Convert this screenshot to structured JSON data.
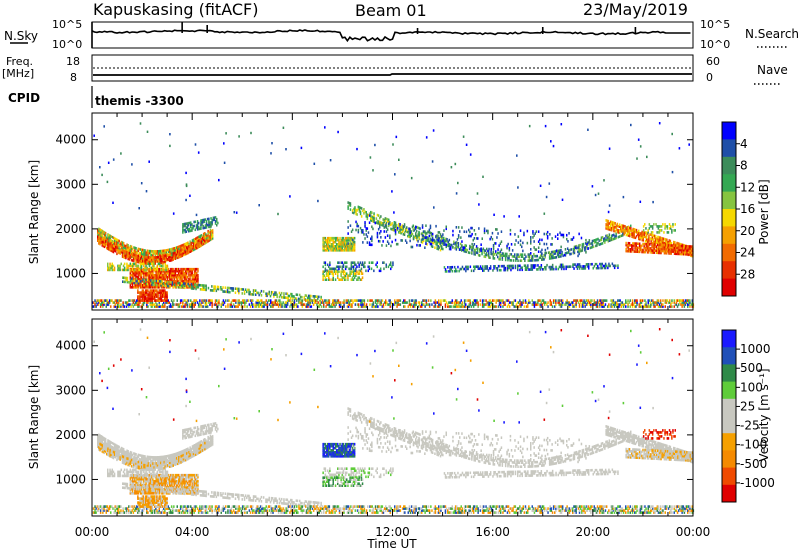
{
  "header": {
    "station": "Kapuskasing (fitACF)",
    "beam": "Beam 01",
    "date": "23/May/2019"
  },
  "control_panels": {
    "nsky": {
      "label": "N.Sky",
      "ticks": [
        "10^5",
        "10^0"
      ]
    },
    "nsearch": {
      "label": "N.Search",
      "ticks": [
        "10^5",
        "10^0"
      ]
    },
    "freq": {
      "label_top": "Freq.",
      "label_bottom": "[MHz]",
      "ticks": [
        "18",
        "8"
      ]
    },
    "nave": {
      "label": "Nave",
      "ticks": [
        "60",
        "0"
      ]
    },
    "cpid": {
      "label": "CPID",
      "value": "themis -3300"
    }
  },
  "colors": {
    "power": [
      "#0000ff",
      "#1f4fa8",
      "#3c8c5a",
      "#34a853",
      "#86c440",
      "#f5d800",
      "#f5a000",
      "#f26b00",
      "#e83000",
      "#e00000"
    ],
    "velocity": [
      "#1a1aff",
      "#2050b8",
      "#2f8a48",
      "#5fcc3a",
      "#c8c8c0",
      "#c8c8c0",
      "#f5a000",
      "#f58a00",
      "#f04a00",
      "#e00000"
    ]
  },
  "chart_data": [
    {
      "type": "heatmap",
      "title": "Power",
      "ylabel": "Slant Range [km]",
      "ylim": [
        180,
        4600
      ],
      "yticks": [
        "1000",
        "2000",
        "3000",
        "4000"
      ],
      "xlim": [
        0,
        24
      ],
      "colorbar_label": "Power [dB]",
      "colorbar_ticks": [
        "4",
        "8",
        "12",
        "16",
        "20",
        "24",
        "28"
      ]
    },
    {
      "type": "heatmap",
      "title": "Velocity",
      "ylabel": "Slant Range [km]",
      "ylim": [
        180,
        4600
      ],
      "yticks": [
        "1000",
        "2000",
        "3000",
        "4000"
      ],
      "xlim": [
        0,
        24
      ],
      "xlabel": "Time UT",
      "xticks": [
        "00:00",
        "04:00",
        "08:00",
        "12:00",
        "16:00",
        "20:00",
        "00:00"
      ],
      "colorbar_label": "Velocity [m s⁻¹]",
      "colorbar_ticks": [
        "1000",
        "500",
        "100",
        "25",
        "-25",
        "-100",
        "-500",
        "-1000"
      ]
    }
  ]
}
